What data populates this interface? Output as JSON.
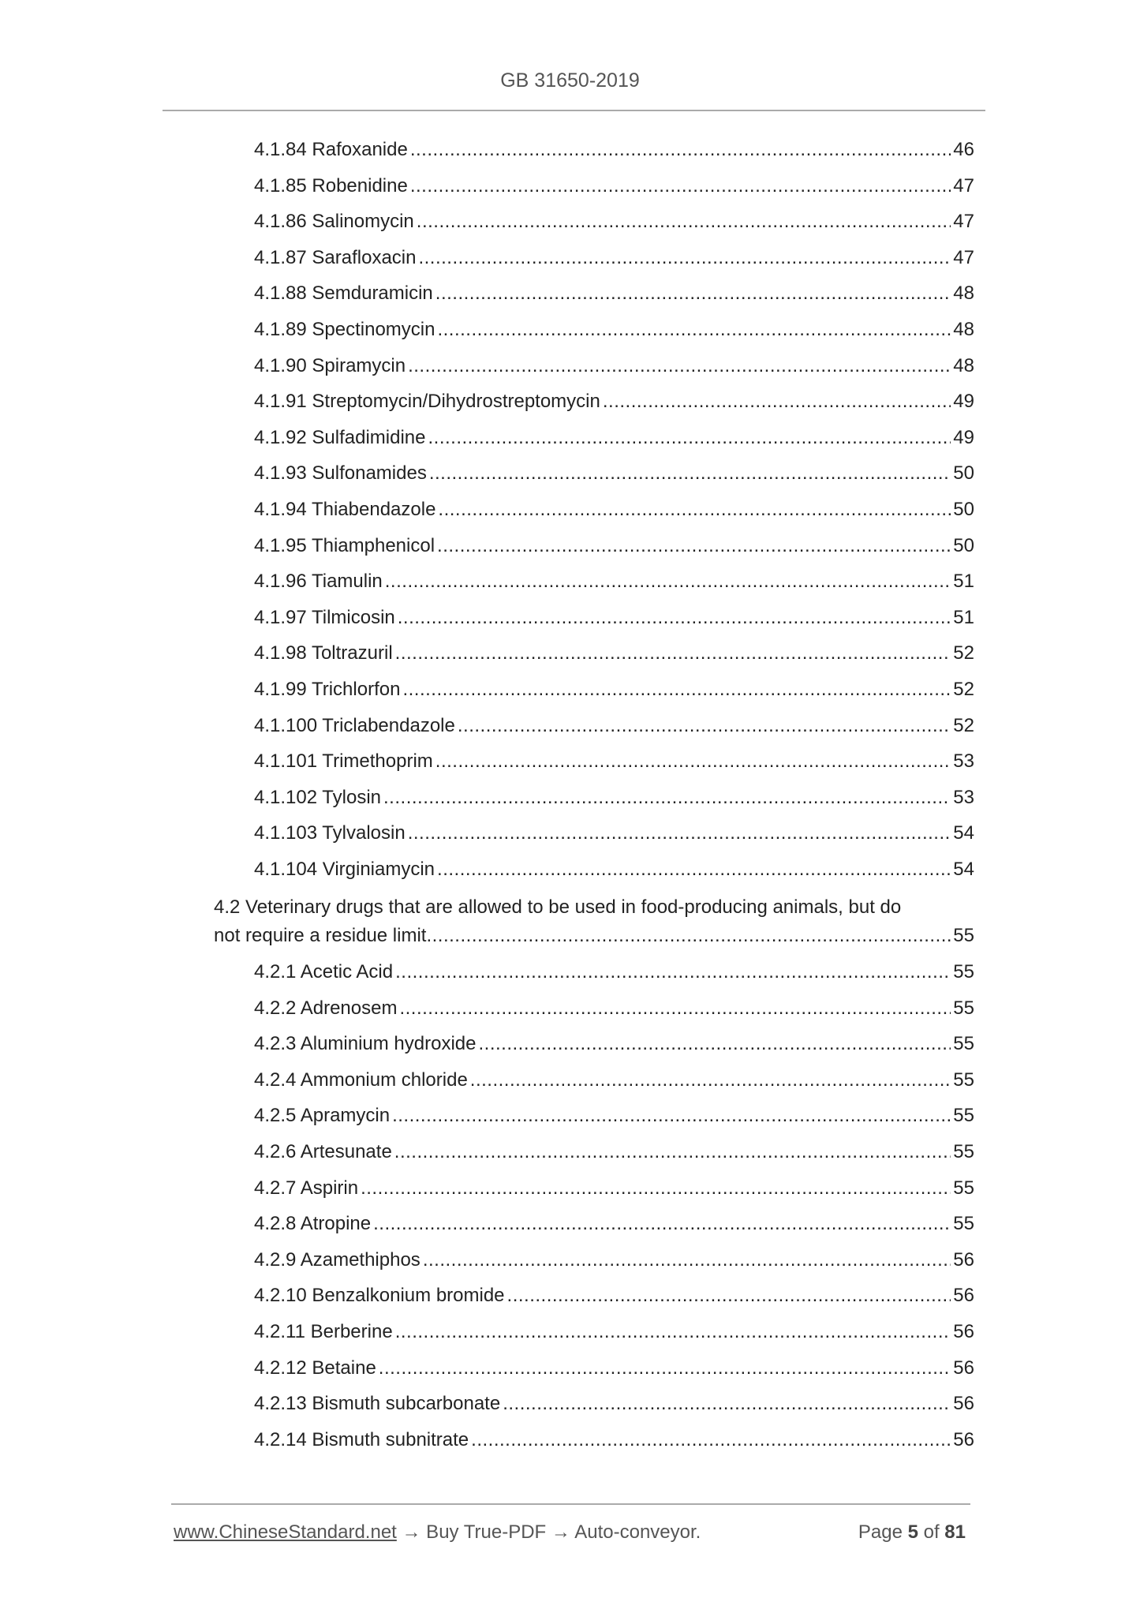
{
  "header": {
    "title": "GB 31650-2019"
  },
  "toc": {
    "entries_a": [
      {
        "label": "4.1.84 Rafoxanide",
        "page": "46"
      },
      {
        "label": "4.1.85 Robenidine",
        "page": "47"
      },
      {
        "label": "4.1.86 Salinomycin",
        "page": "47"
      },
      {
        "label": "4.1.87 Sarafloxacin",
        "page": "47"
      },
      {
        "label": "4.1.88 Semduramicin",
        "page": "48"
      },
      {
        "label": "4.1.89 Spectinomycin",
        "page": "48"
      },
      {
        "label": "4.1.90 Spiramycin",
        "page": "48"
      },
      {
        "label": "4.1.91 Streptomycin/Dihydrostreptomycin",
        "page": "49"
      },
      {
        "label": "4.1.92 Sulfadimidine",
        "page": "49"
      },
      {
        "label": "4.1.93 Sulfonamides",
        "page": "50"
      },
      {
        "label": "4.1.94 Thiabendazole",
        "page": "50"
      },
      {
        "label": "4.1.95 Thiamphenicol",
        "page": "50"
      },
      {
        "label": "4.1.96 Tiamulin",
        "page": "51"
      },
      {
        "label": "4.1.97 Tilmicosin",
        "page": "51"
      },
      {
        "label": "4.1.98 Toltrazuril",
        "page": "52"
      },
      {
        "label": "4.1.99 Trichlorfon",
        "page": "52"
      },
      {
        "label": "4.1.100 Triclabendazole",
        "page": "52"
      },
      {
        "label": "4.1.101 Trimethoprim",
        "page": "53"
      },
      {
        "label": "4.1.102 Tylosin",
        "page": "53"
      },
      {
        "label": "4.1.103 Tylvalosin",
        "page": "54"
      },
      {
        "label": "4.1.104 Virginiamycin",
        "page": "54"
      }
    ],
    "section": {
      "line1": "4.2 Veterinary drugs that are allowed to be used in food-producing animals, but do",
      "line2": "not require a residue limit",
      "page": "55"
    },
    "entries_b": [
      {
        "label": "4.2.1 Acetic Acid",
        "page": "55"
      },
      {
        "label": "4.2.2 Adrenosem",
        "page": "55"
      },
      {
        "label": "4.2.3 Aluminium hydroxide",
        "page": "55"
      },
      {
        "label": "4.2.4 Ammonium chloride",
        "page": "55"
      },
      {
        "label": "4.2.5 Apramycin",
        "page": "55"
      },
      {
        "label": "4.2.6 Artesunate",
        "page": "55"
      },
      {
        "label": "4.2.7 Aspirin",
        "page": "55"
      },
      {
        "label": "4.2.8 Atropine",
        "page": "55"
      },
      {
        "label": "4.2.9 Azamethiphos",
        "page": "56"
      },
      {
        "label": "4.2.10 Benzalkonium bromide",
        "page": "56"
      },
      {
        "label": "4.2.11 Berberine",
        "page": "56"
      },
      {
        "label": "4.2.12 Betaine",
        "page": "56"
      },
      {
        "label": "4.2.13 Bismuth subcarbonate",
        "page": "56"
      },
      {
        "label": "4.2.14 Bismuth subnitrate",
        "page": "56"
      }
    ]
  },
  "footer": {
    "link": "www.ChineseStandard.net",
    "text": " → Buy True-PDF → Auto-conveyor.",
    "page_prefix": "Page ",
    "page_current": "5",
    "page_mid": " of ",
    "page_total": "81"
  }
}
